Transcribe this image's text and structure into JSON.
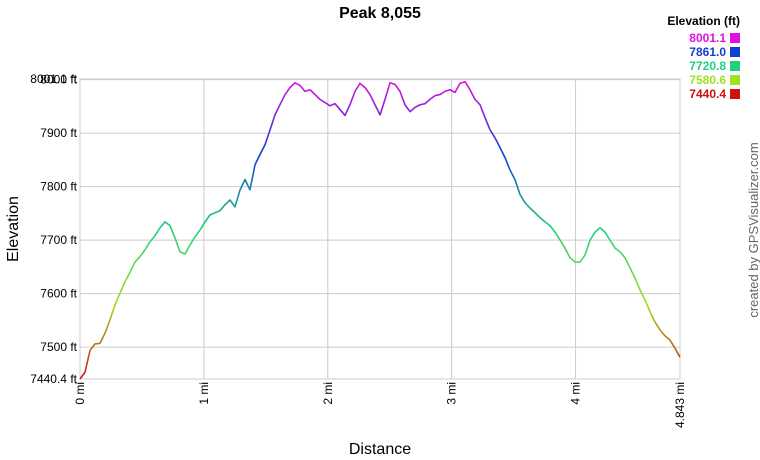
{
  "chart_data": {
    "type": "line",
    "title": "Peak 8,055",
    "x_label": "Distance",
    "y_label": "Elevation",
    "credit": "created by GPSVisualizer.com",
    "colorscale": {
      "title": "Elevation (ft)",
      "stops": [
        {
          "value": 8001.1,
          "label": "8001.1",
          "color": "#e010e0"
        },
        {
          "value": 7861.0,
          "label": "7861.0",
          "color": "#1040d0"
        },
        {
          "value": 7720.8,
          "label": "7720.8",
          "color": "#20d080"
        },
        {
          "value": 7580.6,
          "label": "7580.6",
          "color": "#a0e020"
        },
        {
          "value": 7440.4,
          "label": "7440.4",
          "color": "#d01010"
        }
      ]
    },
    "xlim": [
      0,
      4.843
    ],
    "ylim": [
      7440.4,
      8001.1
    ],
    "xticks": [
      {
        "value": 0,
        "label": "0 mi"
      },
      {
        "value": 1,
        "label": "1 mi"
      },
      {
        "value": 2,
        "label": "2 mi"
      },
      {
        "value": 3,
        "label": "3 mi"
      },
      {
        "value": 4,
        "label": "4 mi"
      },
      {
        "value": 4.843,
        "label": "4.843 mi"
      }
    ],
    "yticks": [
      {
        "value": 7440.4,
        "label": "7440.4 ft"
      },
      {
        "value": 7500,
        "label": "7500 ft"
      },
      {
        "value": 7600,
        "label": "7600 ft"
      },
      {
        "value": 7700,
        "label": "7700 ft"
      },
      {
        "value": 7800,
        "label": "7800 ft"
      },
      {
        "value": 7900,
        "label": "7900 ft"
      },
      {
        "value": 8000,
        "label": "8000 ft"
      },
      {
        "value": 8001.1,
        "label": "8001.1 ft"
      }
    ],
    "grid": true,
    "x": [
      0,
      0.04,
      0.081,
      0.121,
      0.161,
      0.202,
      0.242,
      0.283,
      0.323,
      0.363,
      0.404,
      0.444,
      0.484,
      0.525,
      0.565,
      0.605,
      0.646,
      0.686,
      0.726,
      0.767,
      0.807,
      0.848,
      0.888,
      0.928,
      0.969,
      1.009,
      1.049,
      1.09,
      1.13,
      1.17,
      1.211,
      1.251,
      1.292,
      1.332,
      1.372,
      1.413,
      1.453,
      1.493,
      1.534,
      1.574,
      1.614,
      1.655,
      1.695,
      1.735,
      1.776,
      1.816,
      1.857,
      1.897,
      1.937,
      1.978,
      2.018,
      2.058,
      2.099,
      2.139,
      2.179,
      2.22,
      2.26,
      2.301,
      2.341,
      2.381,
      2.422,
      2.462,
      2.502,
      2.543,
      2.583,
      2.623,
      2.664,
      2.704,
      2.744,
      2.785,
      2.825,
      2.866,
      2.906,
      2.946,
      2.987,
      3.027,
      3.067,
      3.108,
      3.148,
      3.188,
      3.229,
      3.269,
      3.31,
      3.35,
      3.39,
      3.431,
      3.471,
      3.511,
      3.552,
      3.592,
      3.632,
      3.673,
      3.713,
      3.753,
      3.794,
      3.834,
      3.875,
      3.915,
      3.955,
      3.996,
      4.036,
      4.076,
      4.117,
      4.157,
      4.197,
      4.238,
      4.278,
      4.319,
      4.359,
      4.399,
      4.44,
      4.48,
      4.52,
      4.561,
      4.601,
      4.641,
      4.682,
      4.722,
      4.762,
      4.803,
      4.843
    ],
    "series": [
      {
        "name": "Elevation",
        "values": [
          7440.4,
          7453,
          7494,
          7506,
          7507,
          7526,
          7551,
          7579,
          7601,
          7622,
          7640,
          7659,
          7669,
          7682,
          7697,
          7708,
          7723,
          7734,
          7727,
          7704,
          7678,
          7674,
          7691,
          7706,
          7719,
          7734,
          7747,
          7751,
          7755,
          7766,
          7775,
          7762,
          7794,
          7813,
          7794,
          7841,
          7860,
          7878,
          7906,
          7934,
          7953,
          7972,
          7985,
          7994,
          7989,
          7978,
          7981,
          7972,
          7963,
          7957,
          7951,
          7955,
          7944,
          7933,
          7953,
          7978,
          7993,
          7985,
          7972,
          7953,
          7934,
          7963,
          7994,
          7991,
          7978,
          7953,
          7940,
          7948,
          7953,
          7955,
          7963,
          7970,
          7972,
          7978,
          7981,
          7976,
          7993,
          7996,
          7981,
          7963,
          7953,
          7929,
          7906,
          7891,
          7873,
          7854,
          7831,
          7813,
          7785,
          7770,
          7760,
          7751,
          7742,
          7734,
          7727,
          7715,
          7700,
          7685,
          7667,
          7659,
          7659,
          7672,
          7700,
          7715,
          7723,
          7715,
          7700,
          7685,
          7678,
          7667,
          7648,
          7629,
          7607,
          7588,
          7566,
          7547,
          7532,
          7521,
          7513,
          7498,
          7481
        ]
      }
    ]
  }
}
